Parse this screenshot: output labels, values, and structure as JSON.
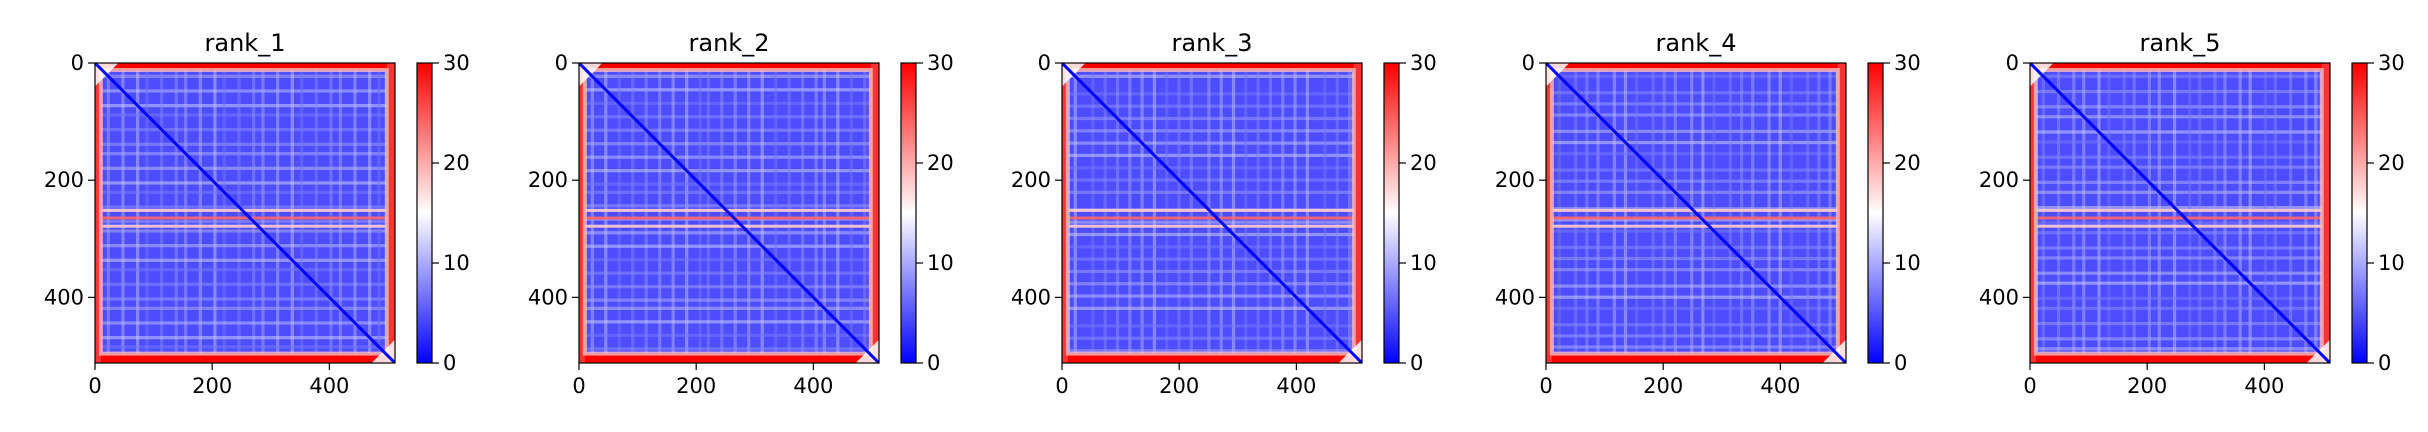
{
  "chart_data": [
    {
      "type": "heatmap",
      "title": "rank_1",
      "xticks": [
        0,
        200,
        400
      ],
      "yticks": [
        0,
        200,
        400
      ],
      "xlim": [
        0,
        512
      ],
      "ylim": [
        512,
        0
      ],
      "colorbar": {
        "min": 0,
        "max": 30,
        "ticks": [
          0,
          10,
          20,
          30
        ],
        "colors": [
          "#0000ff",
          "#ffffff",
          "#ff0000"
        ]
      },
      "bright_rows": [
        249,
        262,
        276
      ]
    },
    {
      "type": "heatmap",
      "title": "rank_2",
      "xticks": [
        0,
        200,
        400
      ],
      "yticks": [
        0,
        200,
        400
      ],
      "xlim": [
        0,
        512
      ],
      "ylim": [
        512,
        0
      ],
      "colorbar": {
        "min": 0,
        "max": 30,
        "ticks": [
          0,
          10,
          20,
          30
        ],
        "colors": [
          "#0000ff",
          "#ffffff",
          "#ff0000"
        ]
      },
      "bright_rows": [
        249,
        262,
        276
      ]
    },
    {
      "type": "heatmap",
      "title": "rank_3",
      "xticks": [
        0,
        200,
        400
      ],
      "yticks": [
        0,
        200,
        400
      ],
      "xlim": [
        0,
        512
      ],
      "ylim": [
        512,
        0
      ],
      "colorbar": {
        "min": 0,
        "max": 30,
        "ticks": [
          0,
          10,
          20,
          30
        ],
        "colors": [
          "#0000ff",
          "#ffffff",
          "#ff0000"
        ]
      },
      "bright_rows": [
        249,
        262,
        276
      ]
    },
    {
      "type": "heatmap",
      "title": "rank_4",
      "xticks": [
        0,
        200,
        400
      ],
      "yticks": [
        0,
        200,
        400
      ],
      "xlim": [
        0,
        512
      ],
      "ylim": [
        512,
        0
      ],
      "colorbar": {
        "min": 0,
        "max": 30,
        "ticks": [
          0,
          10,
          20,
          30
        ],
        "colors": [
          "#0000ff",
          "#ffffff",
          "#ff0000"
        ]
      },
      "bright_rows": [
        249,
        262,
        276
      ]
    },
    {
      "type": "heatmap",
      "title": "rank_5",
      "xticks": [
        0,
        200,
        400
      ],
      "yticks": [
        0,
        200,
        400
      ],
      "xlim": [
        0,
        512
      ],
      "ylim": [
        512,
        0
      ],
      "colorbar": {
        "min": 0,
        "max": 30,
        "ticks": [
          0,
          10,
          20,
          30
        ],
        "colors": [
          "#0000ff",
          "#ffffff",
          "#ff0000"
        ]
      },
      "bright_rows": [
        249,
        262,
        276
      ]
    }
  ]
}
